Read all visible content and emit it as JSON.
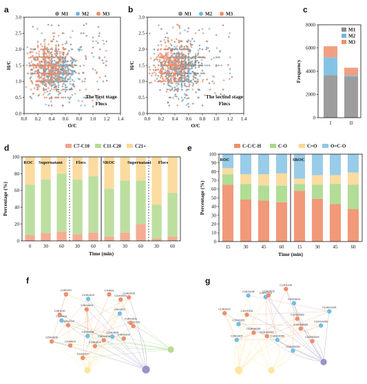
{
  "colors": {
    "M1": "#8c8c8c",
    "M2": "#6fb8e0",
    "M3": "#f08e6a",
    "short": "#f4a488",
    "mid": "#b5dc95",
    "long": "#fbd796",
    "CC": "#f08e6a",
    "CO": "#a9d98b",
    "Ceq": "#fbd796",
    "OCO": "#8ec7e6",
    "node_orange": "#f08e6a",
    "node_blue": "#6fc0e6",
    "node_green": "#b5dc95",
    "node_yellow": "#fbe7a0",
    "node_purple": "#9d92c6"
  },
  "panel_labels": [
    "a",
    "b",
    "c",
    "d",
    "e",
    "f",
    "g"
  ],
  "chart_data": [
    {
      "id": "a",
      "type": "scatter",
      "xlabel": "O/C",
      "ylabel": "H/C",
      "xlim": [
        0.0,
        1.4
      ],
      "ylim": [
        0.0,
        3.0
      ],
      "xticks": [
        "0.0",
        "0.2",
        "0.4",
        "0.6",
        "0.8",
        "1.0",
        "1.2",
        "1.4"
      ],
      "yticks": [
        "0.0",
        "0.5",
        "1.0",
        "1.5",
        "2.0",
        "2.5",
        "3.0"
      ],
      "legend": [
        "M1",
        "M2",
        "M3"
      ],
      "legend_position": "top",
      "annotation": [
        "The first stage",
        "Flocs"
      ],
      "series": [
        {
          "name": "M1",
          "x_center": 0.45,
          "y_center": 1.35,
          "x_spread": 0.16,
          "y_spread": 0.33,
          "n": 620,
          "seed": 11
        },
        {
          "name": "M2",
          "x_center": 0.5,
          "y_center": 1.3,
          "x_spread": 0.14,
          "y_spread": 0.28,
          "n": 180,
          "seed": 23
        },
        {
          "name": "M3",
          "x_center": 0.34,
          "y_center": 1.45,
          "x_spread": 0.14,
          "y_spread": 0.38,
          "n": 380,
          "seed": 37
        }
      ]
    },
    {
      "id": "b",
      "type": "scatter",
      "xlabel": "O/C",
      "ylabel": "H/C",
      "xlim": [
        0.0,
        1.4
      ],
      "ylim": [
        0.0,
        3.0
      ],
      "xticks": [
        "0.0",
        "0.2",
        "0.4",
        "0.6",
        "0.8",
        "1.0",
        "1.2",
        "1.4"
      ],
      "yticks": [
        "0.0",
        "0.5",
        "1.0",
        "1.5",
        "2.0",
        "2.5",
        "3.0"
      ],
      "legend": [
        "M1",
        "M2",
        "M3"
      ],
      "legend_position": "top",
      "annotation": [
        "The second stage",
        "Flocs"
      ],
      "series": [
        {
          "name": "M1",
          "x_center": 0.48,
          "y_center": 1.45,
          "x_spread": 0.15,
          "y_spread": 0.33,
          "n": 680,
          "seed": 51
        },
        {
          "name": "M2",
          "x_center": 0.46,
          "y_center": 1.4,
          "x_spread": 0.12,
          "y_spread": 0.28,
          "n": 130,
          "seed": 63
        },
        {
          "name": "M3",
          "x_center": 0.33,
          "y_center": 1.5,
          "x_spread": 0.13,
          "y_spread": 0.35,
          "n": 330,
          "seed": 77
        }
      ]
    },
    {
      "id": "c",
      "type": "bar",
      "stacked": true,
      "ylabel": "Frequency",
      "ylim": [
        0,
        8000
      ],
      "yticks": [
        "0",
        "2000",
        "4000",
        "6000",
        "8000"
      ],
      "categories": [
        "I",
        "II"
      ],
      "legend": [
        "M1",
        "M2",
        "M3"
      ],
      "legend_position": "top-right",
      "series": [
        {
          "name": "M1",
          "values": [
            3650,
            3550
          ]
        },
        {
          "name": "M2",
          "values": [
            1550,
            100
          ]
        },
        {
          "name": "M3",
          "values": [
            950,
            650
          ]
        }
      ]
    },
    {
      "id": "d",
      "type": "bar",
      "stacked": true,
      "ylabel": "Percentage (%)",
      "xlabel": "Time (min)",
      "ylim": [
        0,
        100
      ],
      "yticks": [
        "0",
        "20",
        "40",
        "60",
        "80",
        "100"
      ],
      "legend": [
        "C7-C10",
        "C11-C20",
        "C21+"
      ],
      "legend_position": "top",
      "group_labels": [
        "ROC",
        "Supernatant",
        "Flocs",
        "SROC",
        "Supernatant",
        "Flocs"
      ],
      "categories": [
        "0",
        "30",
        "60",
        "30",
        "60",
        "0",
        "30",
        "60",
        "30",
        "60"
      ],
      "series": [
        {
          "name": "C7-C10",
          "values": [
            7,
            9,
            11,
            8,
            10,
            5,
            10,
            20,
            3,
            5
          ]
        },
        {
          "name": "C11-C20",
          "values": [
            60,
            64,
            69,
            65,
            67,
            57,
            62,
            52,
            40,
            52
          ]
        },
        {
          "name": "C21+",
          "values": [
            33,
            27,
            20,
            27,
            23,
            38,
            28,
            28,
            57,
            43
          ]
        }
      ]
    },
    {
      "id": "e",
      "type": "bar",
      "stacked": true,
      "ylabel": "Percentage (%)",
      "xlabel": "Time (min)",
      "ylim": [
        0,
        100
      ],
      "yticks": [
        "0",
        "10",
        "20",
        "30",
        "40",
        "50",
        "60",
        "70",
        "80",
        "90",
        "100"
      ],
      "legend": [
        "C-C/C-H",
        "C-O",
        "C=O",
        "O=C-O"
      ],
      "legend_position": "top",
      "group_labels": [
        "ROC",
        "SROC"
      ],
      "categories": [
        "15",
        "30",
        "45",
        "60",
        "15",
        "30",
        "45",
        "60"
      ],
      "series": [
        {
          "name": "C-C/C-H",
          "values": [
            65,
            48,
            47,
            45,
            58,
            49,
            43,
            37
          ]
        },
        {
          "name": "C-O",
          "values": [
            12,
            18,
            17,
            19,
            8,
            16,
            23,
            28
          ]
        },
        {
          "name": "C=O",
          "values": [
            7,
            11,
            13,
            14,
            6,
            11,
            10,
            14
          ]
        },
        {
          "name": "O=C-O",
          "values": [
            16,
            23,
            23,
            22,
            28,
            24,
            24,
            21
          ]
        }
      ]
    }
  ],
  "network_f": {
    "labels": [
      "C17H27O3",
      "C14H23O2",
      "C11H14O4",
      "C13H10O6",
      "C13H10O4",
      "C11H11O7",
      "C11H13O5",
      "C10H9O3",
      "C20H18O5",
      "C19H17O2",
      "C10H9O4",
      "C15H13O",
      "C13H13O",
      "C15H19O4",
      "C10H14O3",
      "C7H5O3",
      "C11H19O4",
      "C14H15O5",
      "C9H13O7",
      "C14H13O3"
    ]
  },
  "network_g": {
    "labels": [
      "C11H14O5S",
      "C12H18O5S",
      "C10H20O4S",
      "C13H16O3S",
      "C16H14O5S",
      "C13H20O5S",
      "C10H18O4S",
      "C15H19O7",
      "C12H13O2",
      "C13H10O7",
      "C11H13O4",
      "C14H11O6",
      "C19H17O4",
      "C15H19O2",
      "C13H11O5",
      "C10H16O3",
      "C12H21O3S",
      "C11H12O6S"
    ]
  }
}
